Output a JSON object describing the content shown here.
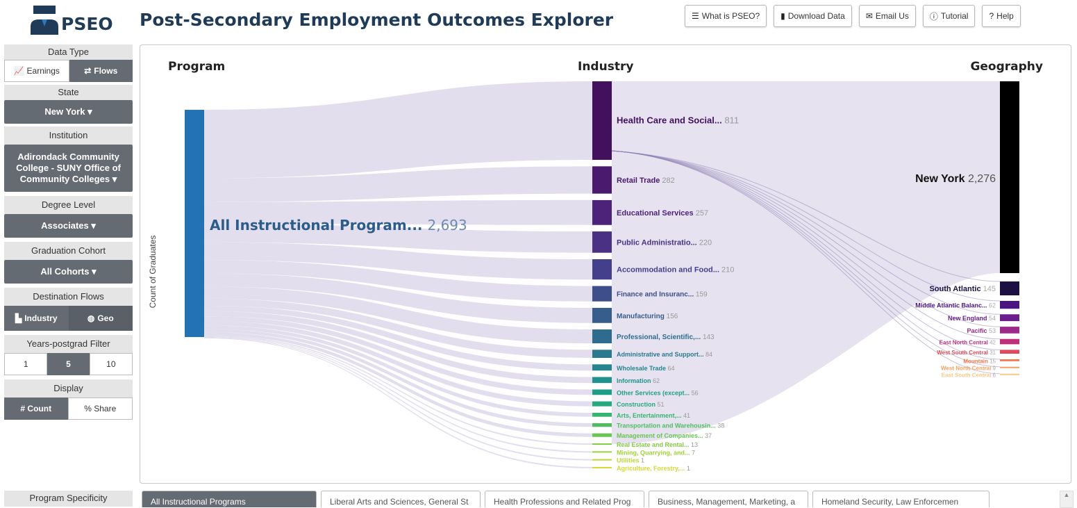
{
  "header": {
    "brand": "PSEO",
    "title": "Post-Secondary Employment Outcomes Explorer",
    "buttons": [
      {
        "label": "What is PSEO?",
        "icon": "list-icon"
      },
      {
        "label": "Download Data",
        "icon": "file-icon"
      },
      {
        "label": "Email Us",
        "icon": "envelope-icon"
      },
      {
        "label": "Tutorial",
        "icon": "info-icon"
      },
      {
        "label": "Help",
        "icon": "question-icon"
      }
    ]
  },
  "sidebar": {
    "data_type": {
      "label": "Data Type",
      "options": [
        "Earnings",
        "Flows"
      ],
      "selected": "Flows"
    },
    "state": {
      "label": "State",
      "value": "New York"
    },
    "institution": {
      "label": "Institution",
      "value_lines": [
        "Adirondack Community",
        "College - SUNY Office of",
        "Community Colleges"
      ]
    },
    "degree_level": {
      "label": "Degree Level",
      "value": "Associates"
    },
    "graduation_cohort": {
      "label": "Graduation Cohort",
      "value": "All Cohorts"
    },
    "destination_flows": {
      "label": "Destination Flows",
      "options": [
        "Industry",
        "Geo"
      ]
    },
    "years_filter": {
      "label": "Years-postgrad Filter",
      "options": [
        "1",
        "5",
        "10"
      ],
      "selected": "5"
    },
    "display": {
      "label": "Display",
      "options": [
        "# Count",
        "% Share"
      ],
      "selected": "# Count"
    },
    "program_specificity": "Program Specificity"
  },
  "chart": {
    "columns": [
      "Program",
      "Industry",
      "Geography"
    ],
    "y_axis_label": "Count of Graduates",
    "colors": {
      "program": "#2272b4",
      "flow": "#ddd8ea",
      "newyork": "#000000"
    }
  },
  "chart_data": {
    "type": "sankey",
    "program": {
      "label": "All Instructional Program...",
      "value": 2693
    },
    "industries": [
      {
        "label": "Health Care and Social...",
        "value": 811,
        "color": "#43105e"
      },
      {
        "label": "Retail Trade",
        "value": 282,
        "color": "#4a1a6e"
      },
      {
        "label": "Educational Services",
        "value": 257,
        "color": "#4c2378"
      },
      {
        "label": "Public Administratio...",
        "value": 220,
        "color": "#4a3184"
      },
      {
        "label": "Accommodation and Food...",
        "value": 210,
        "color": "#443f8a"
      },
      {
        "label": "Finance and Insuranc...",
        "value": 159,
        "color": "#3d4e8a"
      },
      {
        "label": "Manufacturing",
        "value": 156,
        "color": "#365d8c"
      },
      {
        "label": "Professional, Scientific,...",
        "value": 143,
        "color": "#2f6b8e"
      },
      {
        "label": "Administrative and Support...",
        "value": 84,
        "color": "#2a798e"
      },
      {
        "label": "Wholesale Trade",
        "value": 64,
        "color": "#25858e"
      },
      {
        "label": "Information",
        "value": 62,
        "color": "#20918c"
      },
      {
        "label": "Other Services (except...",
        "value": 56,
        "color": "#1f9d87"
      },
      {
        "label": "Construction",
        "value": 51,
        "color": "#27a97e"
      },
      {
        "label": "Arts, Entertainment,...",
        "value": 41,
        "color": "#38b472"
      },
      {
        "label": "Transportation and Warehousin...",
        "value": 38,
        "color": "#50bd63"
      },
      {
        "label": "Management of Companies...",
        "value": 37,
        "color": "#6ac553"
      },
      {
        "label": "Real Estate and Rental...",
        "value": 13,
        "color": "#85cb44"
      },
      {
        "label": "Mining, Quarrying, and...",
        "value": 7,
        "color": "#a1d13a"
      },
      {
        "label": "Utilities",
        "value": 1,
        "color": "#bdd534"
      },
      {
        "label": "Agriculture, Forestry,...",
        "value": 1,
        "color": "#d6d832"
      }
    ],
    "geographies": [
      {
        "label": "New York",
        "value": 2276,
        "color": "#000000"
      },
      {
        "label": "South Atlantic",
        "value": 145,
        "color": "#1c1042"
      },
      {
        "label": "Middle Atlantic Balanc...",
        "value": 62,
        "color": "#4a1580"
      },
      {
        "label": "New England",
        "value": 54,
        "color": "#6b1f8c"
      },
      {
        "label": "Pacific",
        "value": 53,
        "color": "#9b2a8a"
      },
      {
        "label": "East North Central",
        "value": 42,
        "color": "#c0307a"
      },
      {
        "label": "West South Central",
        "value": 31,
        "color": "#de4a5e"
      },
      {
        "label": "Mountain",
        "value": 15,
        "color": "#f0764a"
      },
      {
        "label": "West North Central",
        "value": 9,
        "color": "#f5a05e"
      },
      {
        "label": "East South Central",
        "value": 6,
        "color": "#f7c98a"
      }
    ]
  },
  "bottom_tabs": [
    "All Instructional Programs",
    "Liberal Arts and Sciences, General St",
    "Health Professions and Related Prog",
    "Business, Management, Marketing, a",
    "Homeland Security, Law Enforcemen"
  ]
}
